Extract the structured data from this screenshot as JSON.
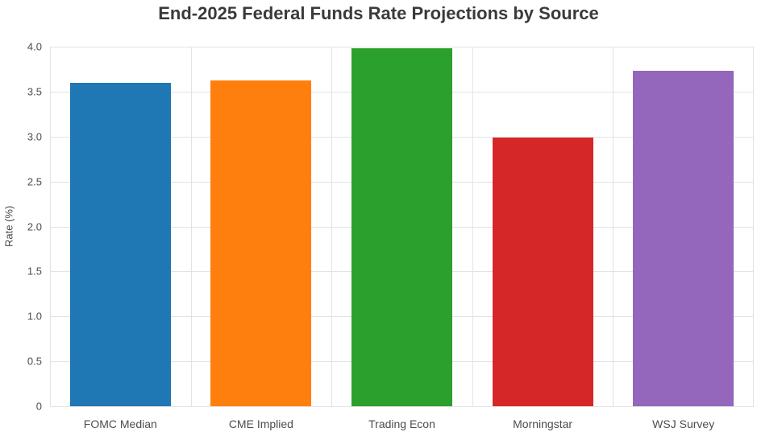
{
  "title": "End-2025 Federal Funds Rate Projections by Source",
  "chart_data": {
    "type": "bar",
    "title": "End-2025 Federal Funds Rate Projections by Source",
    "categories": [
      "FOMC Median",
      "CME Implied",
      "Trading Econ",
      "Morningstar",
      "WSJ Survey"
    ],
    "values": [
      3.6,
      3.62,
      3.98,
      2.99,
      3.73
    ],
    "bar_colors": [
      "#1f77b4",
      "#ff7f0e",
      "#2ca02c",
      "#d62728",
      "#9467bd"
    ],
    "xlabel": "",
    "ylabel": "Rate (%)",
    "ylim": [
      0,
      4.0
    ],
    "yticks": [
      0,
      0.5,
      1.0,
      1.5,
      2.0,
      2.5,
      3.0,
      3.5,
      4.0
    ],
    "ytick_labels": [
      "0",
      "0.5",
      "1.0",
      "1.5",
      "2.0",
      "2.5",
      "3.0",
      "3.5",
      "4.0"
    ],
    "grid": true,
    "legend": false,
    "gridline_color": "#e3e3e3",
    "axis_text_color": "#4d4d4d",
    "title_color": "#3a3a3a"
  }
}
